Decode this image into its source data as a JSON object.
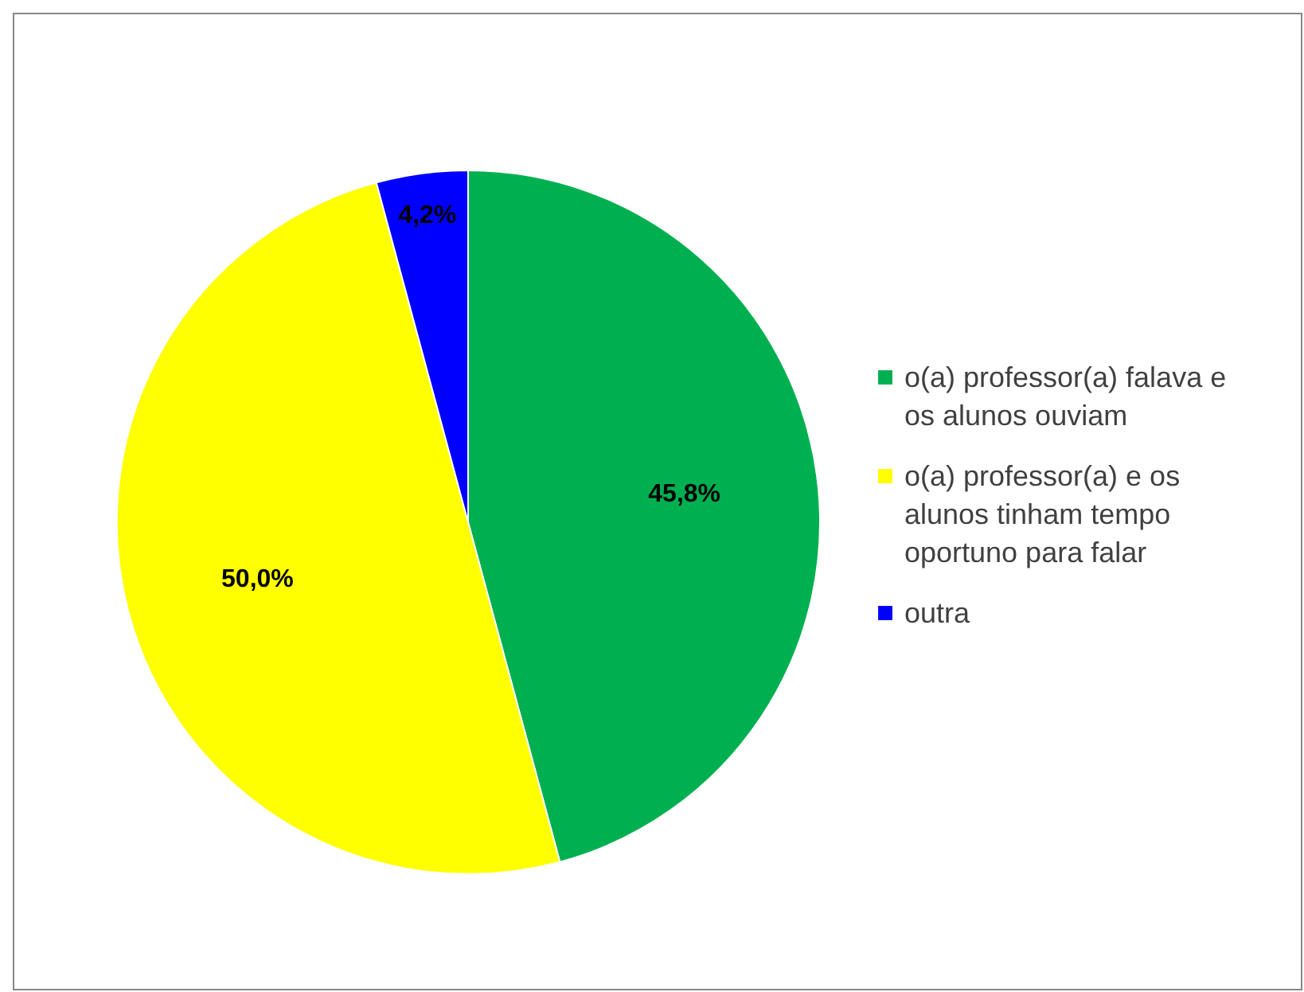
{
  "chart_data": {
    "type": "pie",
    "categories": [
      "o(a) professor(a) falava e os alunos ouviam",
      "o(a) professor(a) e os alunos tinham tempo oportuno para falar",
      "outra"
    ],
    "values": [
      45.8,
      50.0,
      4.2
    ],
    "colors": [
      "#00b050",
      "#ffff00",
      "#0000ff"
    ],
    "value_labels": [
      "45,8%",
      "50,0%",
      "4,2%"
    ],
    "legend": "right"
  }
}
